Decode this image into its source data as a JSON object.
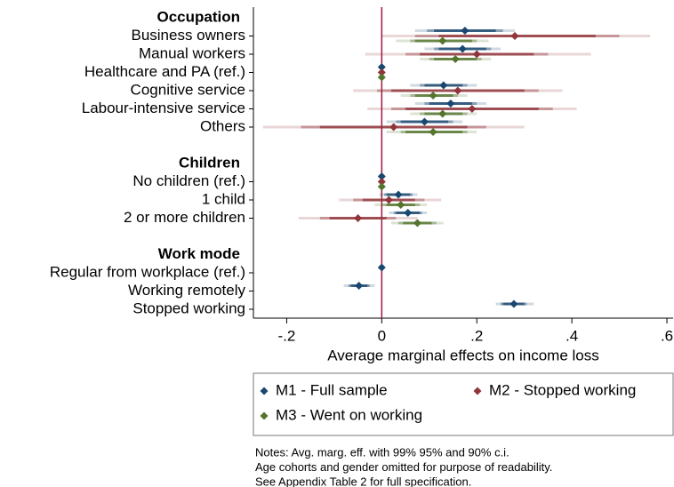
{
  "chart_data": {
    "type": "coefplot",
    "xlabel": "Average marginal effects on income loss",
    "categories": [
      "Occupation",
      "Business owners",
      "Manual workers",
      "Healthcare and PA (ref.)",
      "Cognitive service",
      "Labour-intensive service",
      "Others",
      null,
      "Children",
      "No children (ref.)",
      "1 child",
      "2 or more children",
      null,
      "Work mode",
      "Regular from workplace (ref.)",
      "Working remotely",
      "Stopped working"
    ],
    "headers": [
      0,
      8,
      13
    ],
    "xlim": [
      -0.27,
      0.613
    ],
    "xticks": [
      {
        "value": -0.2,
        "label": "-.2"
      },
      0,
      {
        "value": 0.2,
        "label": ".2"
      },
      {
        "value": 0.4,
        "label": ".4"
      },
      {
        "value": 0.6,
        "label": ".6"
      }
    ],
    "xline": 0,
    "xline_color": "#a0143c",
    "legend": "bottom",
    "series": [
      {
        "name": "M1 - Full sample",
        "color": "#1a476f",
        "values": [
          null,
          0.175,
          0.17,
          0,
          0.13,
          0.145,
          0.09,
          null,
          null,
          0,
          0.035,
          0.055,
          null,
          null,
          0,
          -0.048,
          0.278
        ],
        "ci90": [
          null,
          [
            0.11,
            0.24
          ],
          [
            0.12,
            0.22
          ],
          null,
          [
            0.09,
            0.17
          ],
          [
            0.1,
            0.19
          ],
          [
            0.04,
            0.14
          ],
          null,
          null,
          null,
          [
            0.01,
            0.06
          ],
          [
            0.03,
            0.08
          ],
          null,
          null,
          null,
          [
            -0.065,
            -0.03
          ],
          [
            0.255,
            0.3
          ]
        ],
        "ci95": [
          null,
          [
            0.095,
            0.255
          ],
          [
            0.11,
            0.23
          ],
          null,
          [
            0.08,
            0.18
          ],
          [
            0.09,
            0.2
          ],
          [
            0.03,
            0.15
          ],
          null,
          null,
          null,
          [
            0.005,
            0.065
          ],
          [
            0.025,
            0.085
          ],
          null,
          null,
          null,
          [
            -0.07,
            -0.025
          ],
          [
            0.25,
            0.305
          ]
        ],
        "ci99": [
          null,
          [
            0.07,
            0.28
          ],
          [
            0.09,
            0.25
          ],
          null,
          [
            0.06,
            0.2
          ],
          [
            0.07,
            0.22
          ],
          [
            0.01,
            0.17
          ],
          null,
          null,
          null,
          [
            -0.005,
            0.075
          ],
          [
            0.015,
            0.095
          ],
          null,
          null,
          null,
          [
            -0.08,
            -0.015
          ],
          [
            0.24,
            0.32
          ]
        ]
      },
      {
        "name": "M2 - Stopped working",
        "color": "#90353b",
        "values": [
          null,
          0.28,
          0.2,
          0,
          0.16,
          0.19,
          0.025,
          null,
          null,
          0,
          0.015,
          -0.05,
          null,
          null,
          null,
          null,
          null
        ],
        "ci90": [
          null,
          [
            0.12,
            0.45
          ],
          [
            0.08,
            0.32
          ],
          null,
          [
            0.02,
            0.3
          ],
          [
            0.05,
            0.33
          ],
          [
            -0.13,
            0.18
          ],
          null,
          null,
          null,
          [
            -0.04,
            0.07
          ],
          [
            -0.11,
            0.01
          ],
          null,
          null,
          null,
          null,
          null
        ],
        "ci95": [
          null,
          [
            0.07,
            0.5
          ],
          [
            0.05,
            0.35
          ],
          null,
          [
            -0.01,
            0.33
          ],
          [
            0.02,
            0.36
          ],
          [
            -0.17,
            0.22
          ],
          null,
          null,
          null,
          [
            -0.06,
            0.09
          ],
          [
            -0.13,
            0.03
          ],
          null,
          null,
          null,
          null,
          null
        ],
        "ci99": [
          null,
          [
            0.0,
            0.565
          ],
          [
            -0.035,
            0.44
          ],
          null,
          [
            -0.06,
            0.38
          ],
          [
            -0.03,
            0.41
          ],
          [
            -0.25,
            0.3
          ],
          null,
          null,
          null,
          [
            -0.09,
            0.125
          ],
          [
            -0.175,
            0.075
          ],
          null,
          null,
          null,
          null,
          null
        ]
      },
      {
        "name": "M3 - Went on working",
        "color": "#55752f",
        "values": [
          null,
          0.128,
          0.155,
          0,
          0.108,
          0.128,
          0.108,
          null,
          null,
          0,
          0.04,
          0.075,
          null,
          null,
          null,
          null,
          null
        ],
        "ci90": [
          null,
          [
            0.07,
            0.19
          ],
          [
            0.11,
            0.2
          ],
          null,
          [
            0.07,
            0.15
          ],
          [
            0.09,
            0.17
          ],
          [
            0.05,
            0.17
          ],
          null,
          null,
          null,
          [
            0.01,
            0.07
          ],
          [
            0.045,
            0.105
          ],
          null,
          null,
          null,
          null,
          null
        ],
        "ci95": [
          null,
          [
            0.06,
            0.2
          ],
          [
            0.1,
            0.21
          ],
          null,
          [
            0.06,
            0.16
          ],
          [
            0.08,
            0.18
          ],
          [
            0.04,
            0.18
          ],
          null,
          null,
          null,
          [
            0.0,
            0.08
          ],
          [
            0.035,
            0.115
          ],
          null,
          null,
          null,
          null,
          null
        ],
        "ci99": [
          null,
          [
            0.03,
            0.225
          ],
          [
            0.08,
            0.23
          ],
          null,
          [
            0.04,
            0.18
          ],
          [
            0.06,
            0.2
          ],
          [
            0.01,
            0.2
          ],
          null,
          null,
          null,
          [
            -0.015,
            0.095
          ],
          [
            0.02,
            0.13
          ],
          null,
          null,
          null,
          null,
          null
        ]
      }
    ],
    "notes": [
      "Notes: Avg. marg. eff. with 99% 95% and 90% c.i.",
      "Age cohorts and gender omitted for purpose of readability.",
      "See Appendix Table 2 for full specification."
    ]
  }
}
